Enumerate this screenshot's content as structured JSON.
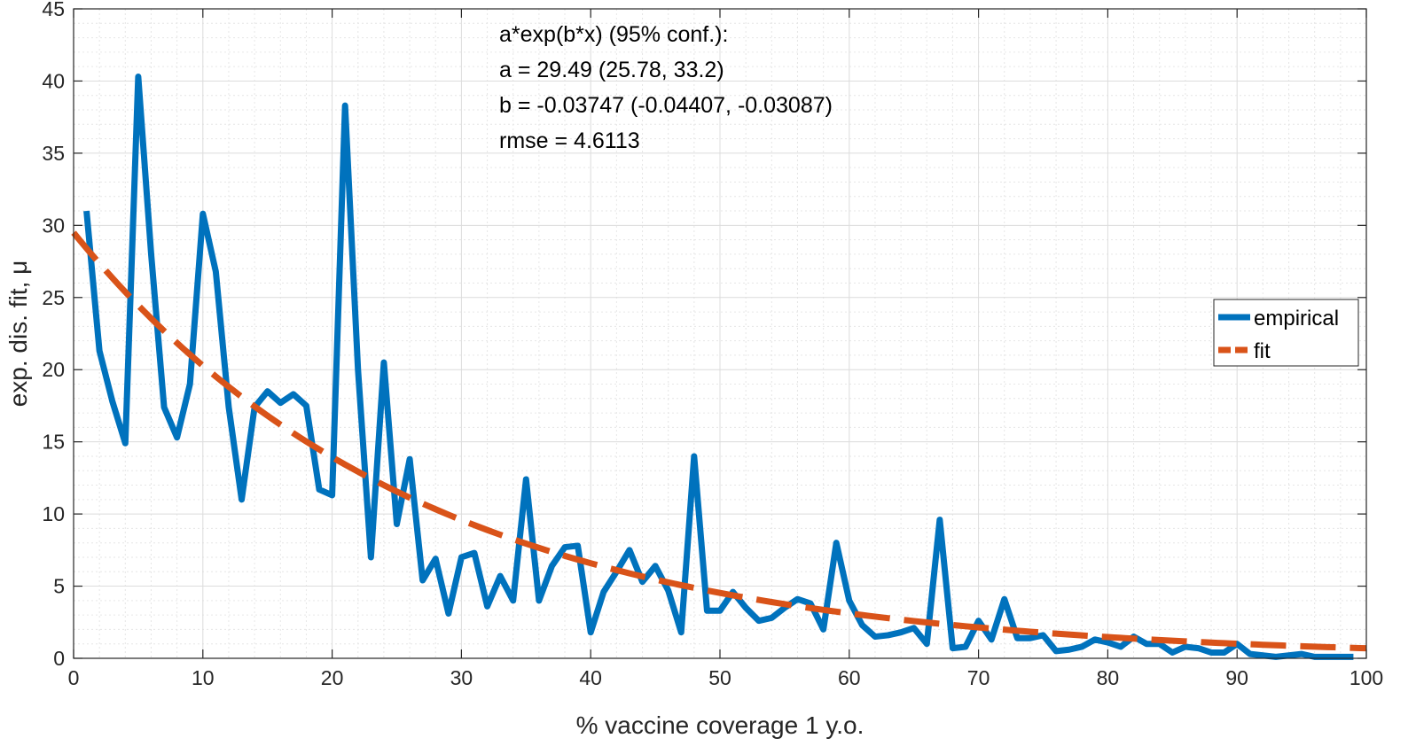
{
  "chart_data": {
    "type": "line",
    "xlabel": "% vaccine coverage 1 y.o.",
    "ylabel": "exp. dis. fit, μ",
    "xlim": [
      0,
      100
    ],
    "ylim": [
      0,
      45
    ],
    "xticks": [
      "0",
      "10",
      "20",
      "30",
      "40",
      "50",
      "60",
      "70",
      "80",
      "90",
      "100"
    ],
    "yticks": [
      "0",
      "5",
      "10",
      "15",
      "20",
      "25",
      "30",
      "35",
      "40",
      "45"
    ],
    "grid": "on (major and minor)",
    "legend_placement": "right",
    "annotation": [
      "a*exp(b*x) (95% conf.):",
      "a = 29.49 (25.78, 33.2)",
      "b = -0.03747 (-0.04407, -0.03087)",
      "rmse = 4.6113"
    ],
    "fit_params": {
      "a": 29.49,
      "b": -0.03747
    },
    "series": [
      {
        "name": "empirical",
        "color": "#0072BD",
        "style": "solid",
        "x": [
          1,
          2,
          3,
          4,
          5,
          6,
          7,
          8,
          9,
          10,
          11,
          12,
          13,
          14,
          15,
          16,
          17,
          18,
          19,
          20,
          21,
          22,
          23,
          24,
          25,
          26,
          27,
          28,
          29,
          30,
          31,
          32,
          33,
          34,
          35,
          36,
          37,
          38,
          39,
          40,
          41,
          42,
          43,
          44,
          45,
          46,
          47,
          48,
          49,
          50,
          51,
          52,
          53,
          54,
          55,
          56,
          57,
          58,
          59,
          60,
          61,
          62,
          63,
          64,
          65,
          66,
          67,
          68,
          69,
          70,
          71,
          72,
          73,
          74,
          75,
          76,
          77,
          78,
          79,
          80,
          81,
          82,
          83,
          84,
          85,
          86,
          87,
          88,
          89,
          90,
          91,
          92,
          93,
          94,
          95,
          96,
          97,
          98,
          99
        ],
        "y": [
          31,
          21.3,
          17.8,
          14.9,
          40.3,
          28,
          17.4,
          15.3,
          19,
          30.8,
          26.8,
          17.4,
          11,
          17.4,
          18.5,
          17.7,
          18.3,
          17.5,
          11.7,
          11.3,
          38.3,
          20,
          7,
          20.5,
          9.3,
          13.8,
          5.4,
          6.9,
          3.1,
          7,
          7.3,
          3.6,
          5.7,
          4,
          12.4,
          4,
          6.4,
          7.7,
          7.8,
          1.8,
          4.6,
          6,
          7.5,
          5.3,
          6.4,
          4.7,
          1.8,
          14,
          3.3,
          3.3,
          4.6,
          3.5,
          2.6,
          2.8,
          3.5,
          4.1,
          3.8,
          2,
          8,
          4,
          2.3,
          1.5,
          1.6,
          1.8,
          2.1,
          1,
          9.6,
          0.7,
          0.8,
          2.6,
          1.3,
          4.1,
          1.4,
          1.4,
          1.6,
          0.5,
          0.6,
          0.8,
          1.3,
          1.1,
          0.8,
          1.5,
          1,
          1,
          0.4,
          0.8,
          0.7,
          0.4,
          0.4,
          1,
          0.3,
          0.2,
          0.1,
          0.2,
          0.3,
          0.1,
          0.1,
          0.1,
          0.1
        ]
      },
      {
        "name": "fit",
        "color": "#D95319",
        "style": "dashed",
        "formula": "29.49*exp(-0.03747*x)",
        "x_range": [
          0,
          100
        ]
      }
    ]
  }
}
